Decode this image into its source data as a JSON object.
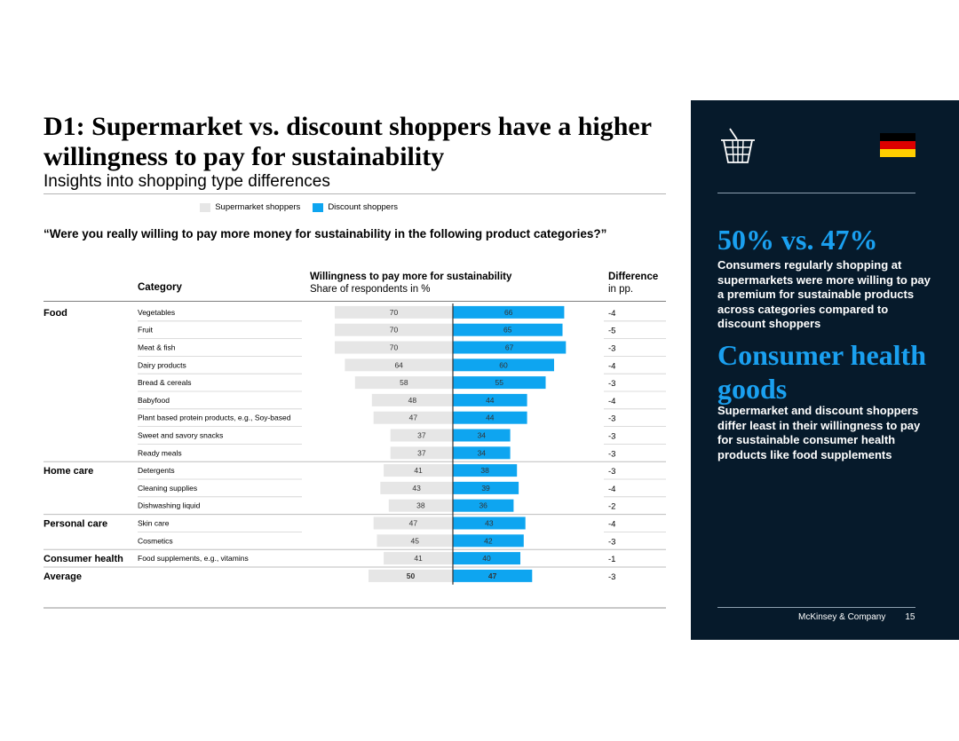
{
  "title": "D1: Supermarket vs. discount shoppers have a higher willingness to pay for sustainability",
  "subtitle": "Insights into shopping type differences",
  "legend": {
    "supermarket": "Supermarket shoppers",
    "discount": "Discount shoppers"
  },
  "question": "“Were you really willing to pay more money for sustainability in the following product categories?”",
  "headers": {
    "category": "Category",
    "willingness_title": "Willingness to pay more for sustainability",
    "willingness_sub": "Share of respondents in %",
    "difference_title": "Difference",
    "difference_sub": "in pp."
  },
  "colors": {
    "supermarket": "#e6e6e6",
    "discount": "#0ea5f0",
    "panel": "#061a2b",
    "accent": "#1aa0f0"
  },
  "chart_data": {
    "type": "bar",
    "title": "Willingness to pay more for sustainability",
    "ylabel": "Share of respondents in %",
    "series_names": [
      "Supermarket shoppers",
      "Discount shoppers"
    ],
    "rows": [
      {
        "group": "Food",
        "category": "Vegetables",
        "supermarket": 70,
        "discount": 66,
        "diff": "-4"
      },
      {
        "group": "",
        "category": "Fruit",
        "supermarket": 70,
        "discount": 65,
        "diff": "-5"
      },
      {
        "group": "",
        "category": "Meat & fish",
        "supermarket": 70,
        "discount": 67,
        "diff": "-3"
      },
      {
        "group": "",
        "category": "Dairy products",
        "supermarket": 64,
        "discount": 60,
        "diff": "-4"
      },
      {
        "group": "",
        "category": "Bread & cereals",
        "supermarket": 58,
        "discount": 55,
        "diff": "-3"
      },
      {
        "group": "",
        "category": "Babyfood",
        "supermarket": 48,
        "discount": 44,
        "diff": "-4"
      },
      {
        "group": "",
        "category": "Plant based protein products, e.g., Soy-based",
        "supermarket": 47,
        "discount": 44,
        "diff": "-3"
      },
      {
        "group": "",
        "category": "Sweet and savory snacks",
        "supermarket": 37,
        "discount": 34,
        "diff": "-3"
      },
      {
        "group": "",
        "category": "Ready meals",
        "supermarket": 37,
        "discount": 34,
        "diff": "-3"
      },
      {
        "group": "Home care",
        "category": "Detergents",
        "supermarket": 41,
        "discount": 38,
        "diff": "-3"
      },
      {
        "group": "",
        "category": "Cleaning supplies",
        "supermarket": 43,
        "discount": 39,
        "diff": "-4"
      },
      {
        "group": "",
        "category": "Dishwashing liquid",
        "supermarket": 38,
        "discount": 36,
        "diff": "-2"
      },
      {
        "group": "Personal care",
        "category": "Skin care",
        "supermarket": 47,
        "discount": 43,
        "diff": "-4"
      },
      {
        "group": "",
        "category": "Cosmetics",
        "supermarket": 45,
        "discount": 42,
        "diff": "-3"
      },
      {
        "group": "Consumer health",
        "category": "Food supplements, e.g., vitamins",
        "supermarket": 41,
        "discount": 40,
        "diff": "-1"
      },
      {
        "group": "Average",
        "category": "",
        "supermarket": 50,
        "discount": 47,
        "diff": "-3"
      }
    ]
  },
  "panel": {
    "headline1": "50% vs. 47%",
    "text1": "Consumers regularly shopping at supermarkets were more willing to pay a premium for sustainable products across categories compared to discount shoppers",
    "headline2": "Consumer health goods",
    "text2": "Supermarket and discount shoppers differ least in their willingness to pay for sustainable consumer health products like food supplements",
    "footer_company": "McKinsey & Company",
    "page_number": "15",
    "basket_icon": "shopping-basket-icon",
    "flag_icon": "germany-flag-icon",
    "flag_colors": [
      "#000000",
      "#dd0000",
      "#ffce00"
    ]
  }
}
